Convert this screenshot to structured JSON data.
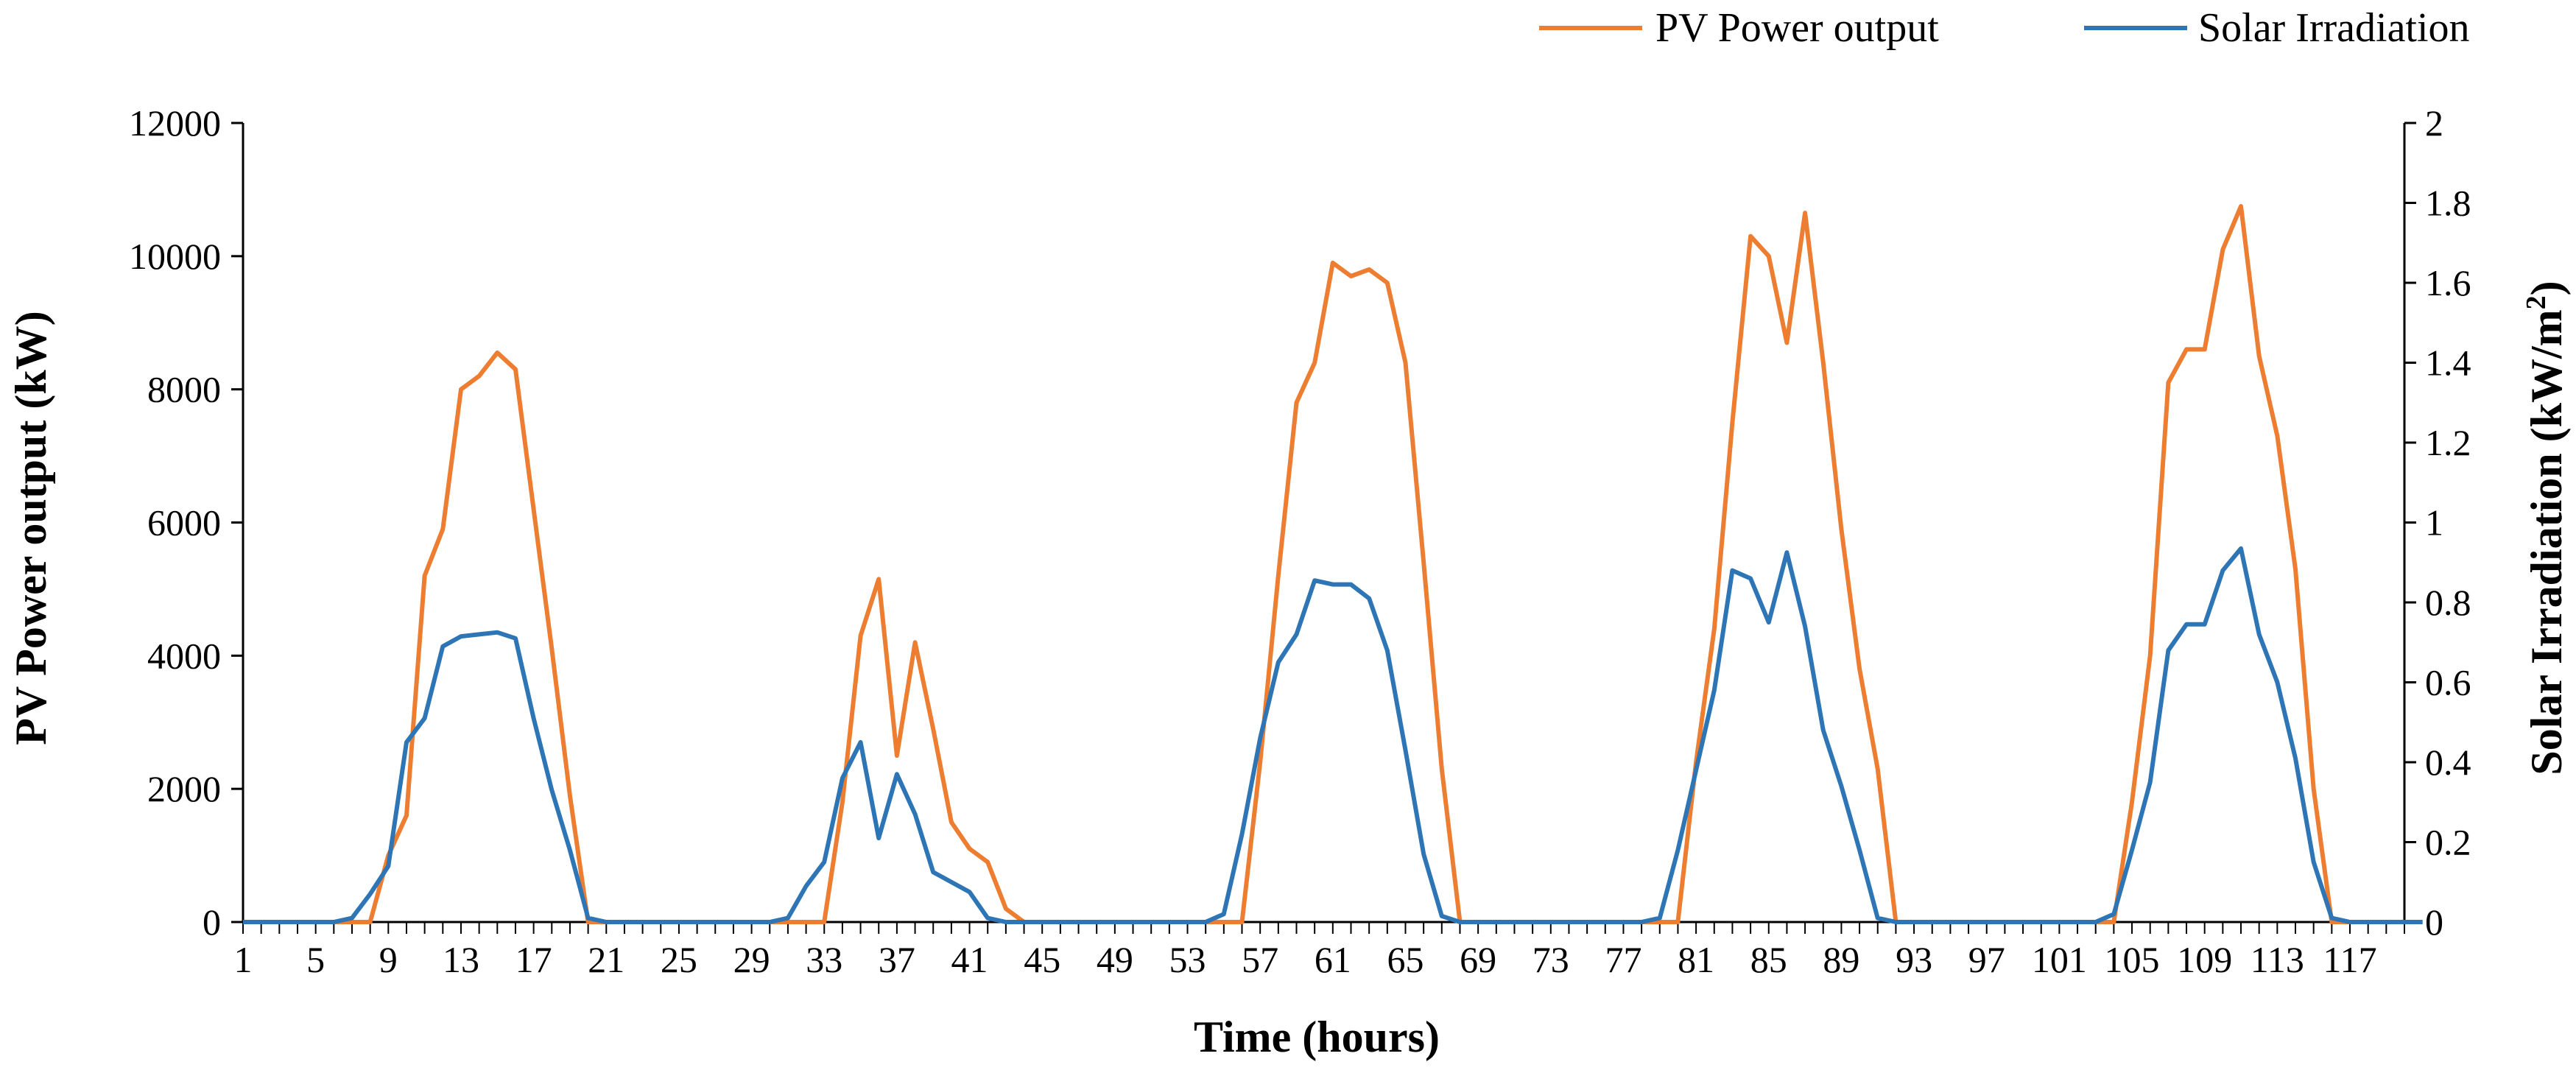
{
  "chart_data": {
    "type": "line",
    "title": "",
    "xlabel": "Time (hours)",
    "ylabel": "PV Power output (kW)",
    "y2label_prefix": "Solar Irradiation (kW/m",
    "y2label_sup": "2",
    "y2label_suffix": ")",
    "xlim": [
      1,
      120
    ],
    "ylim": [
      0,
      12000
    ],
    "y2lim": [
      0,
      2
    ],
    "yticks": [
      "0",
      "2000",
      "4000",
      "6000",
      "8000",
      "10000",
      "12000"
    ],
    "y2ticks": [
      "0",
      "0.2",
      "0.4",
      "0.6",
      "0.8",
      "1",
      "1.2",
      "1.4",
      "1.6",
      "1.8",
      "2"
    ],
    "xticks": [
      "1",
      "5",
      "9",
      "13",
      "17",
      "21",
      "25",
      "29",
      "33",
      "37",
      "41",
      "45",
      "49",
      "53",
      "57",
      "61",
      "65",
      "69",
      "73",
      "77",
      "81",
      "85",
      "89",
      "93",
      "97",
      "101",
      "105",
      "109",
      "113",
      "117"
    ],
    "legend_position": "top-right",
    "series": [
      {
        "name": "PV Power output",
        "axis": "left",
        "color": "#ED7D31",
        "values": [
          0,
          0,
          0,
          0,
          0,
          0,
          0,
          0,
          1000,
          1600,
          5200,
          5900,
          8000,
          8200,
          8550,
          8300,
          6200,
          4100,
          1900,
          0,
          0,
          0,
          0,
          0,
          0,
          0,
          0,
          0,
          0,
          0,
          0,
          0,
          0,
          1800,
          4300,
          5150,
          2500,
          4200,
          2900,
          1500,
          1100,
          900,
          200,
          0,
          0,
          0,
          0,
          0,
          0,
          0,
          0,
          0,
          0,
          0,
          0,
          0,
          2400,
          5200,
          7800,
          8400,
          9900,
          9700,
          9800,
          9600,
          8400,
          5400,
          2300,
          0,
          0,
          0,
          0,
          0,
          0,
          0,
          0,
          0,
          0,
          0,
          0,
          0,
          2400,
          4400,
          7500,
          10300,
          10000,
          8700,
          10650,
          8400,
          5900,
          3800,
          2300,
          0,
          0,
          0,
          0,
          0,
          0,
          0,
          0,
          0,
          0,
          0,
          0,
          0,
          1800,
          4000,
          8100,
          8600,
          8600,
          10100,
          10750,
          8500,
          7300,
          5300,
          2000,
          0,
          0,
          0,
          0,
          0
        ]
      },
      {
        "name": "Solar Irradiation",
        "axis": "right",
        "color": "#2E75B6",
        "values": [
          0,
          0,
          0,
          0,
          0,
          0,
          0.01,
          0.07,
          0.14,
          0.45,
          0.51,
          0.69,
          0.715,
          0.72,
          0.725,
          0.71,
          0.51,
          0.33,
          0.18,
          0.01,
          0,
          0,
          0,
          0,
          0,
          0,
          0,
          0,
          0,
          0,
          0.01,
          0.09,
          0.15,
          0.36,
          0.45,
          0.21,
          0.37,
          0.27,
          0.125,
          0.1,
          0.075,
          0.01,
          0,
          0,
          0,
          0,
          0,
          0,
          0,
          0,
          0,
          0,
          0,
          0,
          0.02,
          0.22,
          0.46,
          0.65,
          0.72,
          0.855,
          0.845,
          0.845,
          0.81,
          0.68,
          0.43,
          0.17,
          0.015,
          0,
          0,
          0,
          0,
          0,
          0,
          0,
          0,
          0,
          0,
          0,
          0.01,
          0.18,
          0.38,
          0.58,
          0.88,
          0.86,
          0.75,
          0.925,
          0.74,
          0.48,
          0.34,
          0.18,
          0.01,
          0,
          0,
          0,
          0,
          0,
          0,
          0,
          0,
          0,
          0,
          0,
          0,
          0.02,
          0.18,
          0.35,
          0.68,
          0.745,
          0.745,
          0.88,
          0.935,
          0.72,
          0.6,
          0.41,
          0.15,
          0.01,
          0,
          0,
          0,
          0,
          0
        ]
      }
    ]
  }
}
